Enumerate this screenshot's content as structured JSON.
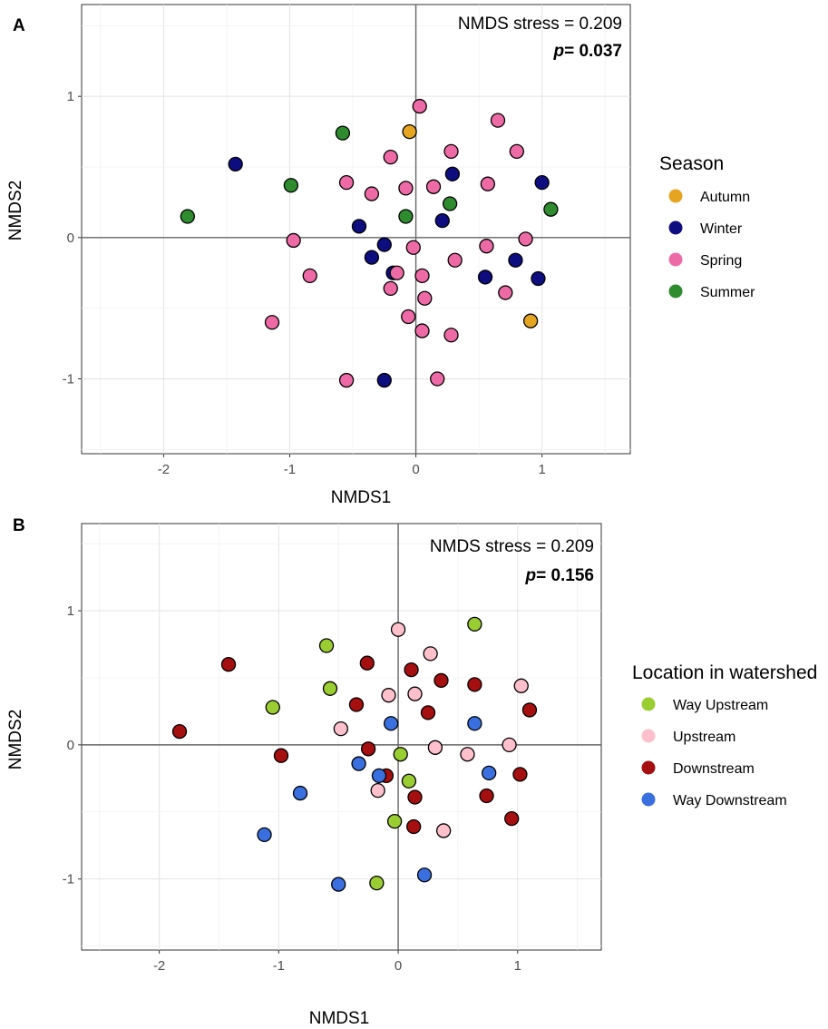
{
  "chart_data": [
    {
      "type": "scatter",
      "panel_label": "A",
      "xlabel": "NMDS1",
      "ylabel": "NMDS2",
      "xlim": [
        -2.65,
        1.7
      ],
      "ylim": [
        -1.53,
        1.65
      ],
      "xticks": [
        -2,
        -1,
        0,
        1
      ],
      "yticks": [
        -1,
        0,
        1
      ],
      "xtick_labels": [
        "-2",
        "-1",
        "0",
        "1"
      ],
      "ytick_labels": [
        "-1",
        "0",
        "1"
      ],
      "grid": true,
      "annotation": {
        "stress": "NMDS stress = 0.209",
        "p_label": "p",
        "p_value": "= 0.037"
      },
      "legend": {
        "title": "Season",
        "position": "right"
      },
      "series": [
        {
          "name": "Autumn",
          "color": "#E6A520",
          "points": [
            [
              -0.05,
              0.75
            ],
            [
              0.91,
              -0.59
            ]
          ]
        },
        {
          "name": "Winter",
          "color": "#0D0D80",
          "points": [
            [
              -1.43,
              0.52
            ],
            [
              -0.45,
              0.08
            ],
            [
              -0.25,
              -0.05
            ],
            [
              -0.35,
              -0.14
            ],
            [
              -0.18,
              -0.25
            ],
            [
              0.29,
              0.45
            ],
            [
              0.21,
              0.12
            ],
            [
              0.55,
              -0.28
            ],
            [
              0.79,
              -0.16
            ],
            [
              0.97,
              -0.29
            ],
            [
              1.0,
              0.39
            ],
            [
              -0.25,
              -1.01
            ]
          ]
        },
        {
          "name": "Spring",
          "color": "#EE6AA7",
          "points": [
            [
              0.03,
              0.93
            ],
            [
              0.65,
              0.83
            ],
            [
              -0.2,
              0.57
            ],
            [
              0.28,
              0.61
            ],
            [
              0.8,
              0.61
            ],
            [
              -0.55,
              0.39
            ],
            [
              -0.35,
              0.31
            ],
            [
              -0.08,
              0.35
            ],
            [
              0.14,
              0.36
            ],
            [
              0.57,
              0.38
            ],
            [
              -0.97,
              -0.02
            ],
            [
              -0.02,
              -0.07
            ],
            [
              0.31,
              -0.16
            ],
            [
              0.56,
              -0.06
            ],
            [
              0.87,
              -0.01
            ],
            [
              -0.84,
              -0.27
            ],
            [
              -0.15,
              -0.25
            ],
            [
              -0.2,
              -0.36
            ],
            [
              0.05,
              -0.27
            ],
            [
              0.07,
              -0.43
            ],
            [
              0.71,
              -0.39
            ],
            [
              -0.06,
              -0.56
            ],
            [
              0.05,
              -0.66
            ],
            [
              0.28,
              -0.69
            ],
            [
              -1.14,
              -0.6
            ],
            [
              -0.55,
              -1.01
            ],
            [
              0.17,
              -1.0
            ]
          ]
        },
        {
          "name": "Summer",
          "color": "#2E8B2E",
          "points": [
            [
              -0.58,
              0.74
            ],
            [
              -0.99,
              0.37
            ],
            [
              -1.81,
              0.15
            ],
            [
              -0.08,
              0.15
            ],
            [
              0.27,
              0.24
            ],
            [
              1.07,
              0.2
            ]
          ]
        }
      ]
    },
    {
      "type": "scatter",
      "panel_label": "B",
      "xlabel": "NMDS1",
      "ylabel": "NMDS2",
      "xlim": [
        -2.65,
        1.7
      ],
      "ylim": [
        -1.53,
        1.65
      ],
      "xticks": [
        -2,
        -1,
        0,
        1
      ],
      "yticks": [
        -1,
        0,
        1
      ],
      "xtick_labels": [
        "-2",
        "-1",
        "0",
        "1"
      ],
      "ytick_labels": [
        "-1",
        "0",
        "1"
      ],
      "grid": true,
      "annotation": {
        "stress": "NMDS stress = 0.209",
        "p_label": "p",
        "p_value": "= 0.156"
      },
      "legend": {
        "title": "Location in watershed",
        "position": "right"
      },
      "series": [
        {
          "name": "Way Upstream",
          "color": "#9ACD32",
          "points": [
            [
              0.64,
              0.9
            ],
            [
              -0.6,
              0.74
            ],
            [
              -0.57,
              0.42
            ],
            [
              -1.05,
              0.28
            ],
            [
              0.02,
              -0.07
            ],
            [
              0.09,
              -0.27
            ],
            [
              -0.03,
              -0.57
            ],
            [
              -0.18,
              -1.03
            ]
          ]
        },
        {
          "name": "Upstream",
          "color": "#FFC0CB",
          "points": [
            [
              0.0,
              0.86
            ],
            [
              0.27,
              0.68
            ],
            [
              -0.08,
              0.37
            ],
            [
              0.14,
              0.38
            ],
            [
              1.03,
              0.44
            ],
            [
              -0.48,
              0.12
            ],
            [
              0.31,
              -0.02
            ],
            [
              0.58,
              -0.07
            ],
            [
              0.93,
              0.0
            ],
            [
              -0.17,
              -0.34
            ],
            [
              0.38,
              -0.64
            ]
          ]
        },
        {
          "name": "Downstream",
          "color": "#A50F0F",
          "points": [
            [
              -1.42,
              0.6
            ],
            [
              -1.83,
              0.1
            ],
            [
              -0.26,
              0.61
            ],
            [
              0.11,
              0.56
            ],
            [
              0.36,
              0.48
            ],
            [
              0.64,
              0.45
            ],
            [
              -0.35,
              0.3
            ],
            [
              0.25,
              0.24
            ],
            [
              1.1,
              0.26
            ],
            [
              -0.98,
              -0.08
            ],
            [
              -0.25,
              -0.03
            ],
            [
              -0.1,
              -0.23
            ],
            [
              0.14,
              -0.39
            ],
            [
              0.74,
              -0.38
            ],
            [
              1.02,
              -0.22
            ],
            [
              0.13,
              -0.61
            ],
            [
              0.95,
              -0.55
            ]
          ]
        },
        {
          "name": "Way Downstream",
          "color": "#3A6FE0",
          "points": [
            [
              -0.06,
              0.16
            ],
            [
              0.64,
              0.16
            ],
            [
              -0.33,
              -0.14
            ],
            [
              -0.16,
              -0.23
            ],
            [
              0.76,
              -0.21
            ],
            [
              -0.82,
              -0.36
            ],
            [
              -1.12,
              -0.67
            ],
            [
              0.22,
              -0.97
            ],
            [
              -0.5,
              -1.04
            ]
          ]
        }
      ]
    }
  ]
}
